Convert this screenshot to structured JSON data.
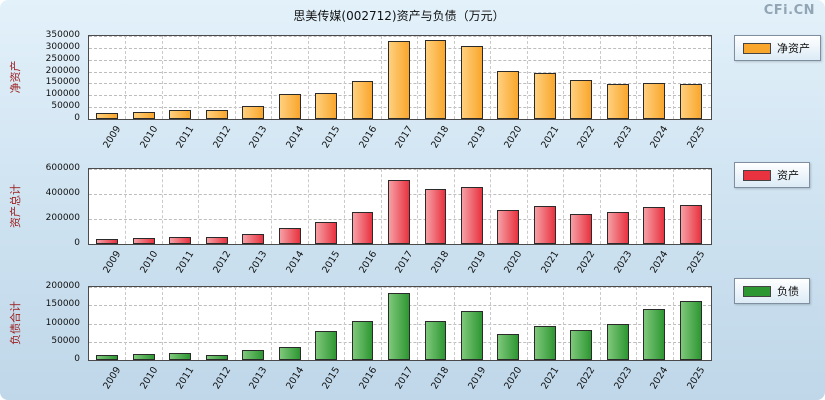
{
  "page": {
    "title": "思美传媒(002712)资产与负债（万元）",
    "watermark": "CFi.CN"
  },
  "chart_data": [
    {
      "type": "bar",
      "ylabel": "净资产",
      "legend": "净资产",
      "unit": "万元",
      "color": "#F9A62C",
      "color_light": "#FFD07E",
      "ylim": [
        0,
        350000
      ],
      "yticks": [
        0,
        50000,
        100000,
        150000,
        200000,
        250000,
        300000,
        350000
      ],
      "grid": true,
      "legend_position": "right",
      "categories": [
        "2009",
        "2010",
        "2011",
        "2012",
        "2013",
        "2014",
        "2015",
        "2016",
        "2017",
        "2018",
        "2019",
        "2020",
        "2021",
        "2022",
        "2023",
        "2024",
        "2025"
      ],
      "values": [
        26000,
        30000,
        36000,
        40000,
        55000,
        104000,
        108000,
        160000,
        330000,
        333000,
        310000,
        203000,
        195000,
        164000,
        147000,
        151000,
        147000
      ]
    },
    {
      "type": "bar",
      "ylabel": "资产总计",
      "legend": "资产",
      "unit": "万元",
      "color": "#E8323F",
      "color_light": "#F6A0A6",
      "ylim": [
        0,
        600000
      ],
      "yticks": [
        0,
        200000,
        400000,
        600000
      ],
      "grid": true,
      "legend_position": "right",
      "categories": [
        "2009",
        "2010",
        "2011",
        "2012",
        "2013",
        "2014",
        "2015",
        "2016",
        "2017",
        "2018",
        "2019",
        "2020",
        "2021",
        "2022",
        "2023",
        "2024",
        "2025"
      ],
      "values": [
        40000,
        49000,
        57000,
        57000,
        82000,
        130000,
        180000,
        260000,
        510000,
        444000,
        460000,
        271000,
        304000,
        238000,
        255000,
        296000,
        312000
      ]
    },
    {
      "type": "bar",
      "ylabel": "负债合计",
      "legend": "负债",
      "unit": "万元",
      "color": "#2D9732",
      "color_light": "#7FC87B",
      "ylim": [
        0,
        200000
      ],
      "yticks": [
        0,
        50000,
        100000,
        150000,
        200000
      ],
      "grid": true,
      "legend_position": "right",
      "categories": [
        "2009",
        "2010",
        "2011",
        "2012",
        "2013",
        "2014",
        "2015",
        "2016",
        "2017",
        "2018",
        "2019",
        "2020",
        "2021",
        "2022",
        "2023",
        "2024",
        "2025"
      ],
      "values": [
        14000,
        17000,
        19000,
        14000,
        28000,
        36000,
        80000,
        106000,
        183000,
        106000,
        133000,
        70000,
        94000,
        83000,
        100000,
        139000,
        161000
      ]
    }
  ]
}
